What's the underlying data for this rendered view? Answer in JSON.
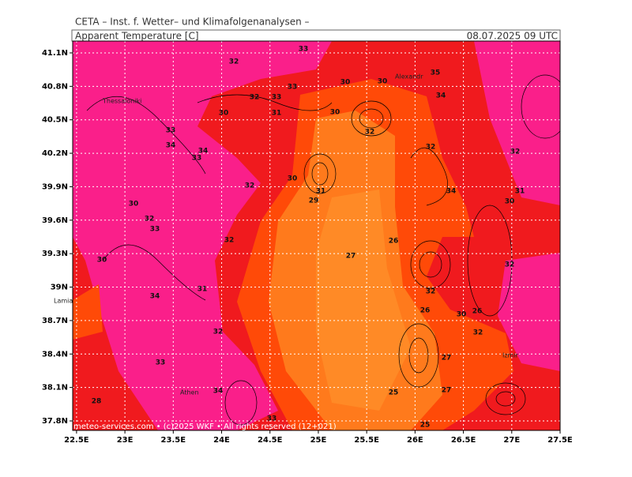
{
  "header": {
    "institute": "CETA – Inst. f. Wetter– und Klimafolgenanalysen –",
    "parameter": "Apparent Temperature [C]",
    "valid_time": "08.07.2025 09 UTC"
  },
  "map": {
    "xlim": [
      22.46,
      27.5
    ],
    "ylim": [
      37.715,
      41.206
    ],
    "lon_ticks": [
      {
        "value": 22.5,
        "label": "22.5E"
      },
      {
        "value": 23,
        "label": "23E"
      },
      {
        "value": 23.5,
        "label": "23.5E"
      },
      {
        "value": 24,
        "label": "24E"
      },
      {
        "value": 24.5,
        "label": "24.5E"
      },
      {
        "value": 25,
        "label": "25E"
      },
      {
        "value": 25.5,
        "label": "25.5E"
      },
      {
        "value": 26,
        "label": "26E"
      },
      {
        "value": 26.5,
        "label": "26.5E"
      },
      {
        "value": 27,
        "label": "27E"
      },
      {
        "value": 27.5,
        "label": "27.5E"
      }
    ],
    "lat_ticks": [
      {
        "value": 41.1,
        "label": "41.1N"
      },
      {
        "value": 40.8,
        "label": "40.8N"
      },
      {
        "value": 40.5,
        "label": "40.5N"
      },
      {
        "value": 40.2,
        "label": "40.2N"
      },
      {
        "value": 39.9,
        "label": "39.9N"
      },
      {
        "value": 39.6,
        "label": "39.6N"
      },
      {
        "value": 39.3,
        "label": "39.3N"
      },
      {
        "value": 39,
        "label": "39N"
      },
      {
        "value": 38.7,
        "label": "38.7N"
      },
      {
        "value": 38.4,
        "label": "38.4N"
      },
      {
        "value": 38.1,
        "label": "38.1N"
      },
      {
        "value": 37.8,
        "label": "37.8N"
      }
    ],
    "cities": [
      "Thessaloniki",
      "Alexandr",
      "Lamia",
      "Athen",
      "Izmir"
    ],
    "contour_labels": [
      "33",
      "32",
      "30",
      "30",
      "35",
      "33",
      "32",
      "33",
      "34",
      "30",
      "31",
      "30",
      "33",
      "34",
      "34",
      "33",
      "32",
      "32",
      "32",
      "30",
      "32",
      "31",
      "34",
      "31",
      "29",
      "30",
      "30",
      "32",
      "33",
      "26",
      "32",
      "27",
      "30",
      "32",
      "34",
      "31",
      "32",
      "26",
      "30",
      "26",
      "32",
      "32",
      "33",
      "27",
      "25",
      "27",
      "28",
      "34",
      "33",
      "25"
    ]
  },
  "footer": "meteo-services.com • (c)2025 WKF • All rights reserved (12+021)"
}
